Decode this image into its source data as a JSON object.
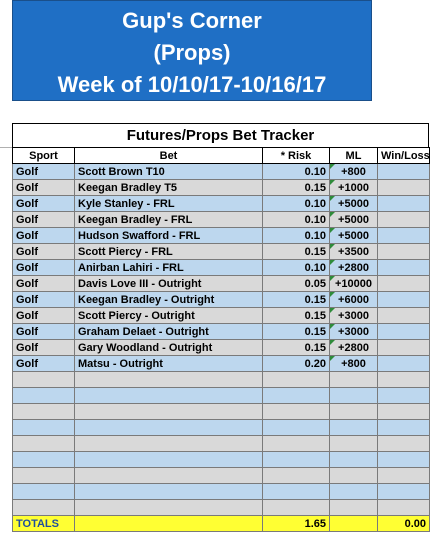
{
  "banner": {
    "line1": "Gup's Corner",
    "line2": "(Props)",
    "line3": "Week of 10/10/17-10/16/17"
  },
  "tracker": {
    "title": "Futures/Props Bet Tracker",
    "columns": [
      "Sport",
      "Bet",
      "* Risk",
      "ML",
      "Win/Loss"
    ],
    "rows": [
      {
        "sport": "Golf",
        "bet": "Scott Brown T10",
        "risk": "0.10",
        "ml": "+800",
        "wl": ""
      },
      {
        "sport": "Golf",
        "bet": "Keegan Bradley T5",
        "risk": "0.15",
        "ml": "+1000",
        "wl": ""
      },
      {
        "sport": "Golf",
        "bet": "Kyle Stanley - FRL",
        "risk": "0.10",
        "ml": "+5000",
        "wl": ""
      },
      {
        "sport": "Golf",
        "bet": "Keegan Bradley - FRL",
        "risk": "0.10",
        "ml": "+5000",
        "wl": ""
      },
      {
        "sport": "Golf",
        "bet": "Hudson Swafford - FRL",
        "risk": "0.10",
        "ml": "+5000",
        "wl": ""
      },
      {
        "sport": "Golf",
        "bet": "Scott Piercy - FRL",
        "risk": "0.15",
        "ml": "+3500",
        "wl": ""
      },
      {
        "sport": "Golf",
        "bet": "Anirban Lahiri - FRL",
        "risk": "0.10",
        "ml": "+2800",
        "wl": ""
      },
      {
        "sport": "Golf",
        "bet": "Davis Love III - Outright",
        "risk": "0.05",
        "ml": "+10000",
        "wl": ""
      },
      {
        "sport": "Golf",
        "bet": "Keegan Bradley - Outright",
        "risk": "0.15",
        "ml": "+6000",
        "wl": ""
      },
      {
        "sport": "Golf",
        "bet": "Scott Piercy - Outright",
        "risk": "0.15",
        "ml": "+3000",
        "wl": ""
      },
      {
        "sport": "Golf",
        "bet": "Graham Delaet - Outright",
        "risk": "0.15",
        "ml": "+3000",
        "wl": ""
      },
      {
        "sport": "Golf",
        "bet": "Gary Woodland - Outright",
        "risk": "0.15",
        "ml": "+2800",
        "wl": ""
      },
      {
        "sport": "Golf",
        "bet": "Matsu - Outright",
        "risk": "0.20",
        "ml": "+800",
        "wl": ""
      }
    ],
    "empty_rows": 9,
    "totals": {
      "label": "TOTALS",
      "risk": "1.65",
      "wl": "0.00"
    }
  },
  "colors": {
    "banner": "#1f6fc5",
    "row_blue": "#bdd7ee",
    "row_gray": "#d9d9d9",
    "totals": "#ffff33",
    "totals_label": "#1f4e9e",
    "ml_flag": "#2e8b3a"
  },
  "icons": {
    "ml_flag": "green-triangle-comment-indicator"
  }
}
